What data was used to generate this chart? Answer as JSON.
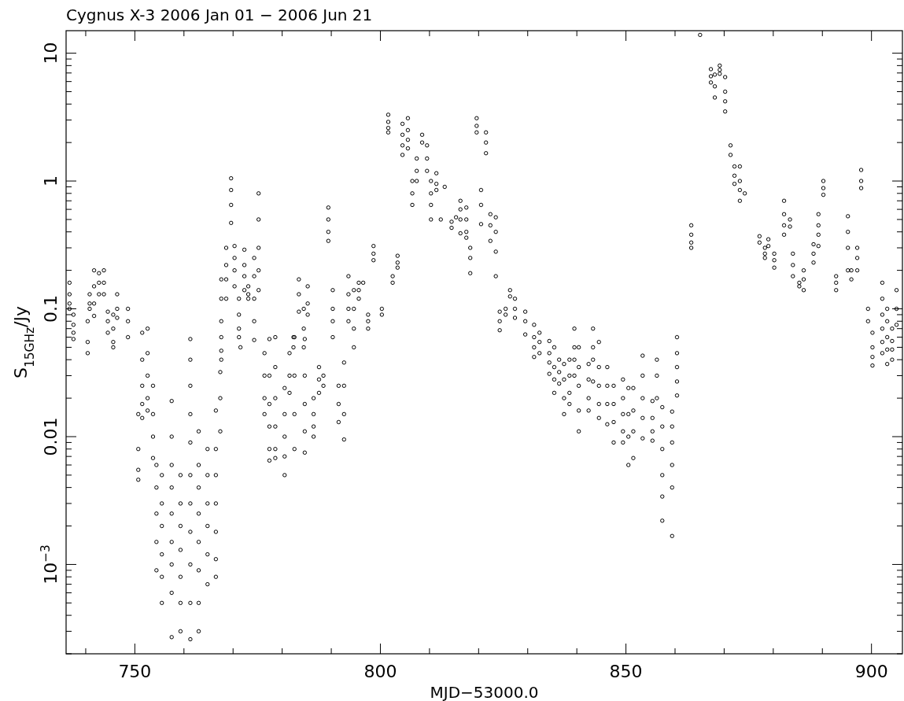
{
  "chart_data": {
    "type": "scatter",
    "title": "Cygnus X-3  2006 Jan 01 − 2006 Jun 21",
    "xlabel": "MJD−53000.0",
    "ylabel": "S$_{15GHz}$/Jy",
    "log": "y",
    "marker": "circle",
    "xlim": [
      736,
      906.3
    ],
    "ylim": [
      0.0002,
      15
    ],
    "xticks": [
      {
        "value": 740,
        "label": null
      },
      750,
      {
        "value": 760,
        "label": null
      },
      {
        "value": 770,
        "label": null
      },
      {
        "value": 780,
        "label": null
      },
      {
        "value": 790,
        "label": null
      },
      800,
      {
        "value": 810,
        "label": null
      },
      {
        "value": 820,
        "label": null
      },
      {
        "value": 830,
        "label": null
      },
      {
        "value": 840,
        "label": null
      },
      850,
      {
        "value": 860,
        "label": null
      },
      {
        "value": 870,
        "label": null
      },
      {
        "value": 880,
        "label": null
      },
      {
        "value": 890,
        "label": null
      },
      900
    ],
    "yticks": [
      {
        "value": 0.0002,
        "label": null
      },
      {
        "value": 0.0003,
        "label": null
      },
      {
        "value": 0.0004,
        "label": null
      },
      {
        "value": 0.0005,
        "label": null
      },
      {
        "value": 0.0006,
        "label": null
      },
      {
        "value": 0.0007,
        "label": null
      },
      {
        "value": 0.0008,
        "label": null
      },
      {
        "value": 0.0009,
        "label": null
      },
      {
        "value": 0.001,
        "label": "10$^{−3}$"
      },
      {
        "value": 0.002,
        "label": null
      },
      {
        "value": 0.003,
        "label": null
      },
      {
        "value": 0.004,
        "label": null
      },
      {
        "value": 0.005,
        "label": null
      },
      {
        "value": 0.006,
        "label": null
      },
      {
        "value": 0.007,
        "label": null
      },
      {
        "value": 0.008,
        "label": null
      },
      {
        "value": 0.009,
        "label": null
      },
      0.01,
      {
        "value": 0.02,
        "label": null
      },
      {
        "value": 0.03,
        "label": null
      },
      {
        "value": 0.04,
        "label": null
      },
      {
        "value": 0.05,
        "label": null
      },
      {
        "value": 0.06,
        "label": null
      },
      {
        "value": 0.07,
        "label": null
      },
      {
        "value": 0.08,
        "label": null
      },
      {
        "value": 0.09,
        "label": null
      },
      0.1,
      {
        "value": 0.2,
        "label": null
      },
      {
        "value": 0.3,
        "label": null
      },
      {
        "value": 0.4,
        "label": null
      },
      {
        "value": 0.5,
        "label": null
      },
      {
        "value": 0.6,
        "label": null
      },
      {
        "value": 0.7,
        "label": null
      },
      {
        "value": 0.8,
        "label": null
      },
      {
        "value": 0.9,
        "label": null
      },
      1,
      {
        "value": 2,
        "label": null
      },
      {
        "value": 3,
        "label": null
      },
      {
        "value": 4,
        "label": null
      },
      {
        "value": 5,
        "label": null
      },
      {
        "value": 6,
        "label": null
      },
      {
        "value": 7,
        "label": null
      },
      {
        "value": 8,
        "label": null
      },
      {
        "value": 9,
        "label": null
      },
      10
    ],
    "series": [
      {
        "color": "#000000",
        "x": [
          736.7,
          736.7,
          736.7,
          736.7,
          737.5,
          737.5,
          737.5,
          737.5,
          740.4,
          740.4,
          740.4,
          740.8,
          740.8,
          740.8,
          741.7,
          741.7,
          741.7,
          741.7,
          742.7,
          742.7,
          742.7,
          743.7,
          743.7,
          743.7,
          744.5,
          744.5,
          744.5,
          745.6,
          745.6,
          745.6,
          745.6,
          746.4,
          746.4,
          746.4,
          748.6,
          748.6,
          748.6,
          750.7,
          750.7,
          750.7,
          750.7,
          751.5,
          751.5,
          751.5,
          751.5,
          751.5,
          752.6,
          752.6,
          752.6,
          752.6,
          752.6,
          753.7,
          753.7,
          753.7,
          753.7,
          754.4,
          754.4,
          754.4,
          754.4,
          754.4,
          755.5,
          755.5,
          755.5,
          755.5,
          755.5,
          755.5,
          757.5,
          757.5,
          757.5,
          757.5,
          757.5,
          757.5,
          757.5,
          757.5,
          757.5,
          759.3,
          759.3,
          759.3,
          759.3,
          759.3,
          759.3,
          759.3,
          761.3,
          761.3,
          761.3,
          761.3,
          761.3,
          761.3,
          761.3,
          761.3,
          761.3,
          761.3,
          761.3,
          763,
          763,
          763,
          763,
          763,
          763,
          763,
          763,
          764.8,
          764.8,
          764.8,
          764.8,
          764.8,
          764.8,
          766.5,
          766.5,
          766.5,
          766.5,
          766.5,
          766.5,
          766.5,
          767.4,
          767.4,
          767.4,
          767.6,
          767.6,
          767.6,
          767.6,
          767.6,
          767.6,
          768.6,
          768.6,
          768.6,
          768.6,
          769.6,
          769.6,
          769.6,
          769.6,
          770.3,
          770.3,
          770.3,
          770.3,
          771.2,
          771.2,
          771.2,
          771.2,
          771.5,
          772.3,
          772.3,
          772.3,
          772.3,
          773.1,
          773.1,
          773.1,
          774.3,
          774.3,
          774.3,
          774.3,
          774.3,
          775.2,
          775.2,
          775.2,
          775.2,
          775.2,
          776.4,
          776.4,
          776.4,
          776.4,
          777.4,
          777.4,
          777.4,
          777.4,
          777.4,
          777.4,
          778.6,
          778.6,
          778.6,
          778.6,
          778.6,
          778.6,
          780.5,
          780.5,
          780.5,
          780.5,
          780.5,
          781.5,
          781.5,
          781.5,
          782.3,
          782.3,
          782.5,
          782.5,
          782.5,
          782.5,
          783.4,
          783.4,
          783.4,
          784.4,
          784.4,
          784.4,
          784.6,
          784.6,
          784.6,
          784.6,
          784.6,
          785.2,
          785.2,
          785.2,
          786.4,
          786.4,
          786.4,
          786.4,
          787.5,
          787.5,
          787.5,
          788.4,
          788.4,
          789.4,
          789.4,
          789.4,
          789.4,
          790.3,
          790.3,
          790.3,
          790.3,
          791.5,
          791.5,
          791.5,
          792.6,
          792.6,
          792.6,
          792.6,
          793.5,
          793.5,
          793.5,
          793.5,
          794.6,
          794.6,
          794.6,
          794.6,
          795.6,
          795.6,
          795.6,
          796.5,
          797.5,
          797.5,
          797.5,
          798.6,
          798.6,
          798.6,
          800.3,
          800.3,
          801.6,
          801.6,
          801.6,
          801.6,
          802.5,
          802.5,
          803.5,
          803.5,
          803.5,
          804.5,
          804.5,
          804.5,
          804.5,
          805.6,
          805.6,
          805.6,
          805.6,
          806.5,
          806.5,
          806.5,
          807.4,
          807.4,
          807.4,
          808.5,
          808.5,
          809.5,
          809.5,
          809.5,
          810.3,
          810.3,
          810.3,
          810.3,
          811.4,
          811.4,
          811.4,
          812.3,
          813.1,
          814.5,
          814.5,
          815.4,
          816.3,
          816.3,
          816.3,
          816.3,
          817.5,
          817.5,
          817.5,
          817.5,
          818.3,
          818.3,
          818.3,
          819.6,
          819.6,
          819.6,
          820.5,
          820.5,
          820.5,
          821.5,
          821.5,
          821.5,
          822.4,
          822.4,
          822.4,
          823.5,
          823.5,
          823.5,
          823.5,
          824.3,
          824.3,
          824.3,
          825.5,
          825.5,
          826.4,
          826.4,
          827.4,
          827.4,
          827.4,
          829.5,
          829.5,
          829.5,
          831.3,
          831.3,
          831.3,
          831.3,
          832.4,
          832.4,
          832.4,
          834.4,
          834.4,
          834.4,
          834.4,
          835.4,
          835.4,
          835.4,
          835.4,
          836.4,
          836.4,
          836.4,
          837.4,
          837.4,
          837.4,
          837.4,
          838.5,
          838.5,
          838.5,
          838.5,
          839.5,
          839.5,
          839.5,
          839.5,
          840.4,
          840.4,
          840.4,
          840.4,
          840.4,
          842.4,
          842.4,
          842.4,
          842.4,
          843.3,
          843.3,
          843.3,
          843.3,
          844.5,
          844.5,
          844.5,
          844.5,
          844.5,
          846.2,
          846.2,
          846.2,
          846.2,
          847.5,
          847.5,
          847.5,
          847.5,
          849.4,
          849.4,
          849.4,
          849.4,
          849.4,
          850.5,
          850.5,
          850.5,
          850.5,
          851.5,
          851.5,
          851.5,
          851.5,
          853.4,
          853.4,
          853.4,
          853.4,
          853.4,
          855.4,
          855.4,
          855.4,
          855.4,
          856.3,
          856.3,
          856.3,
          857.4,
          857.4,
          857.4,
          857.4,
          857.4,
          857.4,
          859.4,
          859.4,
          859.4,
          859.4,
          859.4,
          859.4,
          860.4,
          860.4,
          860.4,
          860.4,
          860.4,
          863.3,
          863.3,
          863.3,
          863.3,
          865.1,
          867.3,
          867.3,
          867.3,
          868.1,
          868.1,
          868.1,
          869.1,
          869.1,
          869.1,
          870.2,
          870.2,
          870.2,
          870.2,
          871.3,
          871.3,
          872.1,
          872.1,
          872.1,
          873.2,
          873.2,
          873.2,
          873.2,
          874.2,
          877.2,
          877.2,
          878.3,
          878.3,
          878.3,
          879,
          879,
          880.2,
          880.2,
          880.2,
          882.2,
          882.2,
          882.2,
          882.2,
          883.4,
          883.4,
          884,
          884,
          884,
          885.3,
          885.3,
          886.2,
          886.2,
          886.2,
          888.2,
          888.2,
          888.2,
          889.2,
          889.2,
          889.2,
          889.2,
          890.2,
          890.2,
          890.2,
          892.8,
          892.8,
          892.8,
          895.2,
          895.2,
          895.2,
          895.2,
          895.9,
          895.9,
          897.1,
          897.1,
          897.1,
          897.9,
          897.9,
          897.9,
          899.3,
          899.3,
          900.2,
          900.2,
          900.2,
          900.2,
          902.2,
          902.2,
          902.2,
          902.2,
          902.2,
          902.2,
          903.2,
          903.2,
          903.2,
          903.2,
          903.2,
          904.2,
          904.2,
          904.2,
          904.2,
          905.1,
          905.1,
          905.1
        ],
        "values": [
          0.16,
          0.13,
          0.11,
          0.1,
          0.09,
          0.075,
          0.065,
          0.058,
          0.08,
          0.055,
          0.045,
          0.13,
          0.11,
          0.1,
          0.2,
          0.15,
          0.11,
          0.088,
          0.19,
          0.16,
          0.13,
          0.2,
          0.16,
          0.13,
          0.095,
          0.08,
          0.065,
          0.09,
          0.07,
          0.055,
          0.05,
          0.13,
          0.1,
          0.085,
          0.1,
          0.08,
          0.06,
          0.015,
          0.008,
          0.0055,
          0.0046,
          0.065,
          0.04,
          0.025,
          0.018,
          0.014,
          0.07,
          0.045,
          0.03,
          0.02,
          0.016,
          0.025,
          0.015,
          0.01,
          0.0068,
          0.006,
          0.004,
          0.0025,
          0.0015,
          0.0009,
          0.005,
          0.003,
          0.002,
          0.0012,
          0.0008,
          0.0005,
          0.019,
          0.01,
          0.006,
          0.004,
          0.0025,
          0.0015,
          0.001,
          0.0006,
          0.00027,
          0.005,
          0.003,
          0.002,
          0.0013,
          0.0008,
          0.0005,
          0.0003,
          0.058,
          0.04,
          0.025,
          0.015,
          0.009,
          0.005,
          0.003,
          0.0018,
          0.001,
          0.0005,
          0.00026,
          0.011,
          0.006,
          0.004,
          0.0025,
          0.0015,
          0.0009,
          0.0005,
          0.0003,
          0.008,
          0.005,
          0.003,
          0.002,
          0.0012,
          0.0007,
          0.016,
          0.008,
          0.005,
          0.003,
          0.0018,
          0.0011,
          0.0008,
          0.032,
          0.02,
          0.011,
          0.17,
          0.12,
          0.08,
          0.06,
          0.047,
          0.04,
          0.3,
          0.22,
          0.17,
          0.12,
          1.05,
          0.85,
          0.65,
          0.47,
          0.31,
          0.25,
          0.2,
          0.15,
          0.12,
          0.09,
          0.07,
          0.06,
          0.05,
          0.29,
          0.22,
          0.18,
          0.14,
          0.15,
          0.13,
          0.12,
          0.25,
          0.18,
          0.12,
          0.08,
          0.057,
          0.8,
          0.5,
          0.3,
          0.2,
          0.14,
          0.045,
          0.03,
          0.02,
          0.015,
          0.058,
          0.03,
          0.018,
          0.012,
          0.008,
          0.0065,
          0.06,
          0.035,
          0.02,
          0.012,
          0.008,
          0.0068,
          0.024,
          0.015,
          0.01,
          0.007,
          0.005,
          0.045,
          0.03,
          0.022,
          0.06,
          0.05,
          0.06,
          0.03,
          0.015,
          0.008,
          0.17,
          0.13,
          0.095,
          0.1,
          0.07,
          0.05,
          0.058,
          0.03,
          0.018,
          0.011,
          0.0075,
          0.15,
          0.11,
          0.09,
          0.02,
          0.015,
          0.012,
          0.01,
          0.035,
          0.028,
          0.022,
          0.03,
          0.025,
          0.62,
          0.5,
          0.4,
          0.34,
          0.14,
          0.1,
          0.08,
          0.06,
          0.025,
          0.018,
          0.013,
          0.038,
          0.025,
          0.015,
          0.0095,
          0.18,
          0.13,
          0.1,
          0.08,
          0.14,
          0.1,
          0.07,
          0.05,
          0.16,
          0.14,
          0.12,
          0.16,
          0.09,
          0.08,
          0.07,
          0.31,
          0.27,
          0.24,
          0.1,
          0.09,
          3.3,
          2.9,
          2.6,
          2.4,
          0.18,
          0.16,
          0.26,
          0.23,
          0.21,
          2.8,
          2.3,
          1.9,
          1.6,
          3.1,
          2.5,
          2.1,
          1.8,
          1,
          0.8,
          0.65,
          1.5,
          1.2,
          1,
          2.3,
          2,
          1.9,
          1.5,
          1.2,
          1,
          0.8,
          0.65,
          0.5,
          1.15,
          0.95,
          0.85,
          0.5,
          0.9,
          0.48,
          0.43,
          0.52,
          0.7,
          0.6,
          0.5,
          0.39,
          0.62,
          0.5,
          0.4,
          0.36,
          0.3,
          0.25,
          0.19,
          3.1,
          2.7,
          2.4,
          0.85,
          0.65,
          0.46,
          2.4,
          2,
          1.65,
          0.55,
          0.45,
          0.34,
          0.52,
          0.4,
          0.28,
          0.18,
          0.095,
          0.08,
          0.068,
          0.1,
          0.09,
          0.14,
          0.125,
          0.12,
          0.1,
          0.085,
          0.095,
          0.08,
          0.063,
          0.075,
          0.06,
          0.05,
          0.042,
          0.065,
          0.055,
          0.045,
          0.056,
          0.045,
          0.038,
          0.031,
          0.05,
          0.035,
          0.028,
          0.022,
          0.04,
          0.032,
          0.026,
          0.037,
          0.028,
          0.02,
          0.015,
          0.04,
          0.03,
          0.022,
          0.018,
          0.07,
          0.05,
          0.04,
          0.03,
          0.05,
          0.035,
          0.025,
          0.016,
          0.011,
          0.037,
          0.028,
          0.02,
          0.016,
          0.07,
          0.05,
          0.04,
          0.027,
          0.055,
          0.035,
          0.025,
          0.018,
          0.014,
          0.035,
          0.025,
          0.018,
          0.0125,
          0.025,
          0.018,
          0.013,
          0.009,
          0.028,
          0.02,
          0.015,
          0.011,
          0.009,
          0.024,
          0.015,
          0.01,
          0.006,
          0.024,
          0.016,
          0.011,
          0.0068,
          0.043,
          0.03,
          0.02,
          0.014,
          0.0097,
          0.019,
          0.014,
          0.011,
          0.0093,
          0.04,
          0.03,
          0.02,
          0.017,
          0.012,
          0.008,
          0.005,
          0.0034,
          0.0022,
          0.0157,
          0.012,
          0.009,
          0.006,
          0.004,
          0.00167,
          0.06,
          0.045,
          0.035,
          0.027,
          0.021,
          0.45,
          0.38,
          0.33,
          0.3,
          13.9,
          7.5,
          6.6,
          5.9,
          6.8,
          5.5,
          4.5,
          8,
          7.4,
          6.9,
          6.5,
          5,
          4.2,
          3.5,
          1.9,
          1.6,
          1.3,
          1.1,
          0.95,
          1.3,
          1,
          0.85,
          0.7,
          0.8,
          0.37,
          0.33,
          0.3,
          0.27,
          0.25,
          0.35,
          0.31,
          0.27,
          0.24,
          0.21,
          0.7,
          0.55,
          0.45,
          0.38,
          0.5,
          0.44,
          0.27,
          0.22,
          0.18,
          0.16,
          0.15,
          0.2,
          0.17,
          0.14,
          0.32,
          0.27,
          0.23,
          0.55,
          0.45,
          0.38,
          0.31,
          1,
          0.88,
          0.78,
          0.18,
          0.16,
          0.14,
          0.53,
          0.4,
          0.3,
          0.2,
          0.2,
          0.17,
          0.3,
          0.25,
          0.2,
          1.22,
          1,
          0.88,
          0.1,
          0.08,
          0.065,
          0.05,
          0.042,
          0.036,
          0.16,
          0.12,
          0.09,
          0.07,
          0.055,
          0.045,
          0.1,
          0.08,
          0.06,
          0.048,
          0.037,
          0.07,
          0.056,
          0.048,
          0.04,
          0.14,
          0.1,
          0.075
        ]
      }
    ]
  }
}
